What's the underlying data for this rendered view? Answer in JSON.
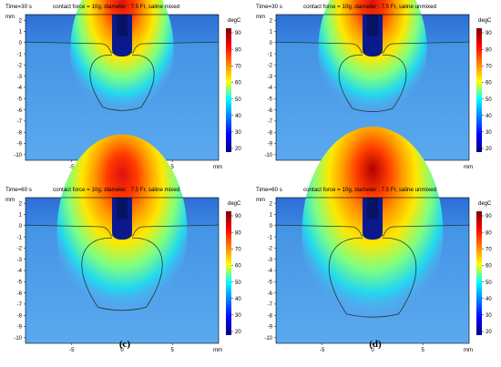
{
  "colors": {
    "colorbar_stops": [
      "#800000",
      "#ff0000",
      "#ff8000",
      "#ffff00",
      "#00ffff",
      "#0080ff",
      "#0000ff",
      "#000080"
    ],
    "field_background": "#4e9ae6",
    "contour": "#203830",
    "tip": "#0a1a8c"
  },
  "panels": [
    {
      "time_label": "Time=30 s",
      "title": "contact force = 10g, diameter : 7.5 Fr, saline mixed",
      "caption": "(a)",
      "unit_label": "degC",
      "axis_unit": "mm",
      "y_ticks": [
        "2",
        "1",
        "0",
        "-1",
        "-2",
        "-3",
        "-4",
        "-5",
        "-6",
        "-7",
        "-8",
        "-9",
        "-10"
      ],
      "x_ticks": [
        "-5",
        "0",
        "5"
      ],
      "cbar_ticks": [
        "90",
        "80",
        "70",
        "60",
        "50",
        "40",
        "30",
        "20"
      ],
      "lesion": {
        "depth_mm": 6.1,
        "half_width_mm": 3.8,
        "peak_degC": 80
      }
    },
    {
      "time_label": "Time=30 s",
      "title": "contact force = 10g, diameter : 7.5 Fr, saline unmixed",
      "caption": "(b)",
      "unit_label": "degC",
      "axis_unit": "mm",
      "y_ticks": [
        "2",
        "1",
        "0",
        "-1",
        "-2",
        "-3",
        "-4",
        "-5",
        "-6",
        "-7",
        "-8",
        "-9",
        "-10"
      ],
      "x_ticks": [
        "-5",
        "0",
        "5"
      ],
      "cbar_ticks": [
        "90",
        "80",
        "70",
        "60",
        "50",
        "40",
        "30",
        "20"
      ],
      "lesion": {
        "depth_mm": 6.2,
        "half_width_mm": 4.0,
        "peak_degC": 88
      }
    },
    {
      "time_label": "Time=60 s",
      "title": "contact force = 10g, diameter : 7.5 Fr, saline mixed",
      "caption": "(c)",
      "unit_label": "degC",
      "axis_unit": "mm",
      "y_ticks": [
        "2",
        "1",
        "0",
        "-1",
        "-2",
        "-3",
        "-4",
        "-5",
        "-6",
        "-7",
        "-8",
        "-9",
        "-10"
      ],
      "x_ticks": [
        "-5",
        "0",
        "5"
      ],
      "cbar_ticks": [
        "90",
        "80",
        "70",
        "60",
        "50",
        "40",
        "30",
        "20"
      ],
      "lesion": {
        "depth_mm": 7.6,
        "half_width_mm": 4.8,
        "peak_degC": 85
      }
    },
    {
      "time_label": "Time=60 s",
      "title": "contact force = 10g, diameter : 7.5 Fr, saline unmixed",
      "caption": "(d)",
      "unit_label": "degC",
      "axis_unit": "mm",
      "y_ticks": [
        "2",
        "1",
        "0",
        "-1",
        "-2",
        "-3",
        "-4",
        "-5",
        "-6",
        "-7",
        "-8",
        "-9",
        "-10"
      ],
      "x_ticks": [
        "-5",
        "0",
        "5"
      ],
      "cbar_ticks": [
        "90",
        "80",
        "70",
        "60",
        "50",
        "40",
        "30",
        "20"
      ],
      "lesion": {
        "depth_mm": 8.2,
        "half_width_mm": 5.2,
        "peak_degC": 93
      }
    }
  ]
}
